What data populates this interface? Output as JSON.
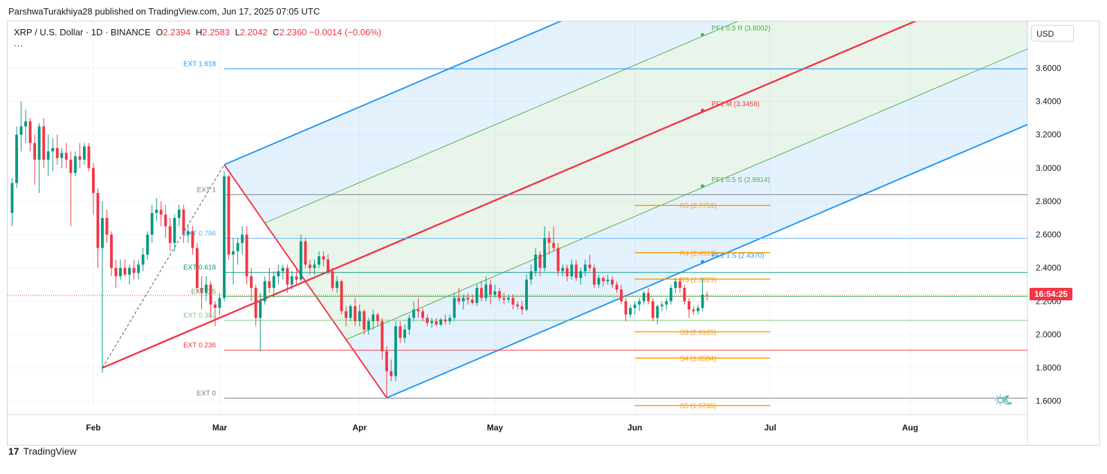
{
  "header": {
    "publisher_line": "ParshwaTurakhiya28 published on TradingView.com, Jun 17, 2025 07:05 UTC"
  },
  "legend": {
    "symbol": "XRP / U.S. Dollar · 1D · BINANCE",
    "open_label": "O",
    "open": "2.2394",
    "high_label": "H",
    "high": "2.2583",
    "low_label": "L",
    "low": "2.2042",
    "close_label": "C",
    "close": "2.2360",
    "change": "−0.0014 (−0.06%)",
    "more": "..."
  },
  "currency_button": "USD",
  "countdown": "16:54:25",
  "footer": {
    "brand_mark": "17",
    "brand": "TradingView"
  },
  "colors": {
    "up": "#089981",
    "down": "#f23645",
    "pitch_blue": "#2196f3",
    "median_red": "#f23645",
    "pivot_orange": "#ff9800",
    "green": "#4caf50"
  },
  "icons": {
    "replay": "sun-moon-icon"
  },
  "chart_data": {
    "type": "candlestick",
    "title": "",
    "y_axis": {
      "ticks": [
        1.6,
        1.8,
        2.0,
        2.2,
        2.4,
        2.6,
        2.8,
        3.0,
        3.2,
        3.4,
        3.6
      ],
      "tick_labels": [
        "1.6000",
        "1.8000",
        "2.0000",
        "2.2000",
        "2.4000",
        "2.6000",
        "2.8000",
        "3.0000",
        "3.2000",
        "3.4000",
        "3.6000"
      ],
      "range": [
        1.52,
        3.88
      ]
    },
    "x_axis": {
      "labels": [
        "Feb",
        "Mar",
        "Apr",
        "May",
        "Jun",
        "Jul",
        "Aug"
      ],
      "dates": [
        "2025-02-01",
        "2025-03-01",
        "2025-04-01",
        "2025-05-01",
        "2025-06-01",
        "2025-07-01",
        "2025-08-01"
      ],
      "range": [
        "2025-01-13",
        "2025-08-27"
      ]
    },
    "candles": [
      [
        "2025-01-14",
        2.73,
        2.94,
        2.65,
        2.91
      ],
      [
        "2025-01-15",
        2.91,
        3.25,
        2.88,
        3.2
      ],
      [
        "2025-01-16",
        3.2,
        3.4,
        3.1,
        3.25
      ],
      [
        "2025-01-17",
        3.25,
        3.35,
        3.15,
        3.28
      ],
      [
        "2025-01-18",
        3.28,
        3.3,
        3.1,
        3.15
      ],
      [
        "2025-01-19",
        3.15,
        3.2,
        2.9,
        3.05
      ],
      [
        "2025-01-20",
        3.05,
        3.27,
        2.85,
        3.25
      ],
      [
        "2025-01-21",
        3.25,
        3.3,
        3.0,
        3.05
      ],
      [
        "2025-01-22",
        3.05,
        3.2,
        2.95,
        3.1
      ],
      [
        "2025-01-23",
        3.1,
        3.18,
        2.98,
        3.12
      ],
      [
        "2025-01-24",
        3.12,
        3.2,
        3.02,
        3.06
      ],
      [
        "2025-01-25",
        3.06,
        3.12,
        3.0,
        3.09
      ],
      [
        "2025-01-26",
        3.09,
        3.15,
        3.0,
        3.05
      ],
      [
        "2025-01-27",
        3.05,
        3.1,
        2.65,
        2.97
      ],
      [
        "2025-01-28",
        2.97,
        3.1,
        2.95,
        3.07
      ],
      [
        "2025-01-29",
        3.07,
        3.15,
        3.0,
        3.05
      ],
      [
        "2025-01-30",
        3.05,
        3.15,
        3.02,
        3.13
      ],
      [
        "2025-01-31",
        3.13,
        3.15,
        2.98,
        3.0
      ],
      [
        "2025-02-01",
        3.0,
        3.03,
        2.72,
        2.85
      ],
      [
        "2025-02-02",
        2.85,
        2.88,
        2.4,
        2.52
      ],
      [
        "2025-02-03",
        2.52,
        2.8,
        1.77,
        2.7
      ],
      [
        "2025-02-04",
        2.7,
        2.75,
        2.55,
        2.6
      ],
      [
        "2025-02-05",
        2.6,
        2.62,
        2.35,
        2.4
      ],
      [
        "2025-02-06",
        2.4,
        2.45,
        2.28,
        2.35
      ],
      [
        "2025-02-07",
        2.35,
        2.45,
        2.33,
        2.4
      ],
      [
        "2025-02-08",
        2.4,
        2.45,
        2.35,
        2.36
      ],
      [
        "2025-02-09",
        2.36,
        2.42,
        2.3,
        2.4
      ],
      [
        "2025-02-10",
        2.4,
        2.45,
        2.33,
        2.37
      ],
      [
        "2025-02-11",
        2.37,
        2.45,
        2.33,
        2.42
      ],
      [
        "2025-02-12",
        2.42,
        2.52,
        2.38,
        2.48
      ],
      [
        "2025-02-13",
        2.48,
        2.62,
        2.45,
        2.6
      ],
      [
        "2025-02-14",
        2.6,
        2.78,
        2.55,
        2.73
      ],
      [
        "2025-02-15",
        2.73,
        2.82,
        2.68,
        2.75
      ],
      [
        "2025-02-16",
        2.75,
        2.8,
        2.65,
        2.72
      ],
      [
        "2025-02-17",
        2.72,
        2.78,
        2.58,
        2.65
      ],
      [
        "2025-02-18",
        2.65,
        2.7,
        2.5,
        2.55
      ],
      [
        "2025-02-19",
        2.55,
        2.72,
        2.5,
        2.7
      ],
      [
        "2025-02-20",
        2.7,
        2.78,
        2.65,
        2.75
      ],
      [
        "2025-02-21",
        2.75,
        2.78,
        2.55,
        2.6
      ],
      [
        "2025-02-22",
        2.6,
        2.65,
        2.55,
        2.62
      ],
      [
        "2025-02-23",
        2.62,
        2.65,
        2.48,
        2.52
      ],
      [
        "2025-02-24",
        2.52,
        2.55,
        2.25,
        2.28
      ],
      [
        "2025-02-25",
        2.28,
        2.35,
        2.15,
        2.25
      ],
      [
        "2025-02-26",
        2.25,
        2.35,
        2.2,
        2.3
      ],
      [
        "2025-02-27",
        2.3,
        2.32,
        2.1,
        2.18
      ],
      [
        "2025-02-28",
        2.18,
        2.2,
        2.05,
        2.16
      ],
      [
        "2025-03-01",
        2.16,
        2.25,
        2.12,
        2.22
      ],
      [
        "2025-03-02",
        2.22,
        2.98,
        2.2,
        2.95
      ],
      [
        "2025-03-03",
        2.95,
        2.96,
        2.45,
        2.48
      ],
      [
        "2025-03-04",
        2.48,
        2.58,
        2.3,
        2.5
      ],
      [
        "2025-03-05",
        2.5,
        2.58,
        2.42,
        2.55
      ],
      [
        "2025-03-06",
        2.55,
        2.65,
        2.48,
        2.6
      ],
      [
        "2025-03-07",
        2.6,
        2.65,
        2.3,
        2.35
      ],
      [
        "2025-03-08",
        2.35,
        2.4,
        2.2,
        2.28
      ],
      [
        "2025-03-09",
        2.28,
        2.3,
        2.05,
        2.1
      ],
      [
        "2025-03-10",
        2.1,
        2.25,
        1.9,
        2.2
      ],
      [
        "2025-03-11",
        2.2,
        2.35,
        2.18,
        2.32
      ],
      [
        "2025-03-12",
        2.32,
        2.4,
        2.25,
        2.28
      ],
      [
        "2025-03-13",
        2.28,
        2.38,
        2.22,
        2.35
      ],
      [
        "2025-03-14",
        2.35,
        2.42,
        2.3,
        2.38
      ],
      [
        "2025-03-15",
        2.38,
        2.42,
        2.33,
        2.4
      ],
      [
        "2025-03-16",
        2.4,
        2.42,
        2.25,
        2.3
      ],
      [
        "2025-03-17",
        2.3,
        2.38,
        2.27,
        2.35
      ],
      [
        "2025-03-18",
        2.35,
        2.4,
        2.3,
        2.33
      ],
      [
        "2025-03-19",
        2.33,
        2.6,
        2.32,
        2.56
      ],
      [
        "2025-03-20",
        2.56,
        2.58,
        2.4,
        2.42
      ],
      [
        "2025-03-21",
        2.42,
        2.45,
        2.36,
        2.4
      ],
      [
        "2025-03-22",
        2.4,
        2.45,
        2.36,
        2.42
      ],
      [
        "2025-03-23",
        2.42,
        2.5,
        2.4,
        2.47
      ],
      [
        "2025-03-24",
        2.47,
        2.5,
        2.41,
        2.45
      ],
      [
        "2025-03-25",
        2.45,
        2.48,
        2.36,
        2.38
      ],
      [
        "2025-03-26",
        2.38,
        2.4,
        2.26,
        2.28
      ],
      [
        "2025-03-27",
        2.28,
        2.35,
        2.25,
        2.32
      ],
      [
        "2025-03-28",
        2.32,
        2.33,
        2.12,
        2.14
      ],
      [
        "2025-03-29",
        2.14,
        2.17,
        2.05,
        2.1
      ],
      [
        "2025-03-30",
        2.1,
        2.18,
        2.08,
        2.17
      ],
      [
        "2025-03-31",
        2.17,
        2.22,
        2.05,
        2.08
      ],
      [
        "2025-04-01",
        2.08,
        2.18,
        2.05,
        2.14
      ],
      [
        "2025-04-02",
        2.14,
        2.15,
        2.0,
        2.03
      ],
      [
        "2025-04-03",
        2.03,
        2.1,
        2.0,
        2.08
      ],
      [
        "2025-04-04",
        2.08,
        2.15,
        2.03,
        2.12
      ],
      [
        "2025-04-05",
        2.12,
        2.13,
        2.05,
        2.08
      ],
      [
        "2025-04-06",
        2.08,
        2.1,
        1.85,
        1.9
      ],
      [
        "2025-04-07",
        1.9,
        1.93,
        1.62,
        1.78
      ],
      [
        "2025-04-08",
        1.78,
        1.85,
        1.72,
        1.75
      ],
      [
        "2025-04-09",
        1.75,
        2.08,
        1.72,
        2.05
      ],
      [
        "2025-04-10",
        2.05,
        2.08,
        1.95,
        1.98
      ],
      [
        "2025-04-11",
        1.98,
        2.06,
        1.95,
        2.03
      ],
      [
        "2025-04-12",
        2.03,
        2.12,
        2.0,
        2.1
      ],
      [
        "2025-04-13",
        2.1,
        2.2,
        2.08,
        2.15
      ],
      [
        "2025-04-14",
        2.15,
        2.22,
        2.1,
        2.14
      ],
      [
        "2025-04-15",
        2.14,
        2.16,
        2.08,
        2.1
      ],
      [
        "2025-04-16",
        2.1,
        2.12,
        2.05,
        2.07
      ],
      [
        "2025-04-17",
        2.07,
        2.1,
        2.04,
        2.08
      ],
      [
        "2025-04-18",
        2.08,
        2.1,
        2.05,
        2.06
      ],
      [
        "2025-04-19",
        2.06,
        2.1,
        2.05,
        2.09
      ],
      [
        "2025-04-20",
        2.09,
        2.12,
        2.06,
        2.08
      ],
      [
        "2025-04-21",
        2.08,
        2.12,
        2.06,
        2.1
      ],
      [
        "2025-04-22",
        2.1,
        2.25,
        2.08,
        2.22
      ],
      [
        "2025-04-23",
        2.22,
        2.28,
        2.18,
        2.2
      ],
      [
        "2025-04-24",
        2.2,
        2.24,
        2.15,
        2.22
      ],
      [
        "2025-04-25",
        2.22,
        2.25,
        2.18,
        2.21
      ],
      [
        "2025-04-26",
        2.21,
        2.24,
        2.18,
        2.19
      ],
      [
        "2025-04-27",
        2.19,
        2.3,
        2.17,
        2.28
      ],
      [
        "2025-04-28",
        2.28,
        2.32,
        2.2,
        2.22
      ],
      [
        "2025-04-29",
        2.22,
        2.35,
        2.2,
        2.3
      ],
      [
        "2025-04-30",
        2.3,
        2.33,
        2.18,
        2.24
      ],
      [
        "2025-05-01",
        2.24,
        2.3,
        2.22,
        2.26
      ],
      [
        "2025-05-02",
        2.26,
        2.28,
        2.2,
        2.22
      ],
      [
        "2025-05-03",
        2.22,
        2.25,
        2.18,
        2.21
      ],
      [
        "2025-05-04",
        2.21,
        2.24,
        2.19,
        2.22
      ],
      [
        "2025-05-05",
        2.22,
        2.24,
        2.15,
        2.18
      ],
      [
        "2025-05-06",
        2.18,
        2.2,
        2.15,
        2.17
      ],
      [
        "2025-05-07",
        2.17,
        2.2,
        2.12,
        2.15
      ],
      [
        "2025-05-08",
        2.15,
        2.36,
        2.14,
        2.33
      ],
      [
        "2025-05-09",
        2.33,
        2.42,
        2.3,
        2.38
      ],
      [
        "2025-05-10",
        2.38,
        2.52,
        2.35,
        2.48
      ],
      [
        "2025-05-11",
        2.48,
        2.5,
        2.35,
        2.4
      ],
      [
        "2025-05-12",
        2.4,
        2.65,
        2.38,
        2.58
      ],
      [
        "2025-05-13",
        2.58,
        2.62,
        2.48,
        2.55
      ],
      [
        "2025-05-14",
        2.55,
        2.65,
        2.5,
        2.52
      ],
      [
        "2025-05-15",
        2.52,
        2.55,
        2.35,
        2.38
      ],
      [
        "2025-05-16",
        2.38,
        2.42,
        2.35,
        2.4
      ],
      [
        "2025-05-17",
        2.4,
        2.42,
        2.32,
        2.35
      ],
      [
        "2025-05-18",
        2.35,
        2.45,
        2.33,
        2.42
      ],
      [
        "2025-05-19",
        2.42,
        2.45,
        2.32,
        2.34
      ],
      [
        "2025-05-20",
        2.34,
        2.4,
        2.3,
        2.38
      ],
      [
        "2025-05-21",
        2.38,
        2.45,
        2.35,
        2.42
      ],
      [
        "2025-05-22",
        2.42,
        2.48,
        2.38,
        2.4
      ],
      [
        "2025-05-23",
        2.4,
        2.42,
        2.28,
        2.3
      ],
      [
        "2025-05-24",
        2.3,
        2.36,
        2.28,
        2.34
      ],
      [
        "2025-05-25",
        2.34,
        2.35,
        2.29,
        2.32
      ],
      [
        "2025-05-26",
        2.32,
        2.36,
        2.3,
        2.33
      ],
      [
        "2025-05-27",
        2.33,
        2.35,
        2.28,
        2.3
      ],
      [
        "2025-05-28",
        2.3,
        2.32,
        2.25,
        2.27
      ],
      [
        "2025-05-29",
        2.27,
        2.3,
        2.18,
        2.2
      ],
      [
        "2025-05-30",
        2.2,
        2.22,
        2.08,
        2.12
      ],
      [
        "2025-05-31",
        2.12,
        2.18,
        2.1,
        2.16
      ],
      [
        "2025-06-01",
        2.16,
        2.2,
        2.12,
        2.18
      ],
      [
        "2025-06-02",
        2.18,
        2.22,
        2.14,
        2.2
      ],
      [
        "2025-06-03",
        2.2,
        2.26,
        2.18,
        2.25
      ],
      [
        "2025-06-04",
        2.25,
        2.28,
        2.18,
        2.2
      ],
      [
        "2025-06-05",
        2.2,
        2.22,
        2.08,
        2.1
      ],
      [
        "2025-06-06",
        2.1,
        2.18,
        2.06,
        2.17
      ],
      [
        "2025-06-07",
        2.17,
        2.2,
        2.14,
        2.18
      ],
      [
        "2025-06-08",
        2.18,
        2.22,
        2.15,
        2.2
      ],
      [
        "2025-06-09",
        2.2,
        2.3,
        2.18,
        2.28
      ],
      [
        "2025-06-10",
        2.28,
        2.34,
        2.25,
        2.32
      ],
      [
        "2025-06-11",
        2.32,
        2.34,
        2.25,
        2.28
      ],
      [
        "2025-06-12",
        2.28,
        2.3,
        2.18,
        2.2
      ],
      [
        "2025-06-13",
        2.2,
        2.22,
        2.1,
        2.15
      ],
      [
        "2025-06-14",
        2.15,
        2.17,
        2.12,
        2.14
      ],
      [
        "2025-06-15",
        2.14,
        2.18,
        2.12,
        2.16
      ],
      [
        "2025-06-16",
        2.16,
        2.34,
        2.14,
        2.24
      ],
      [
        "2025-06-17",
        2.2394,
        2.2583,
        2.2042,
        2.236
      ]
    ],
    "fib_extension_levels": [
      {
        "label": "EXT 1.618",
        "value": 3.595,
        "color": "#2196f3"
      },
      {
        "label": "EXT 1",
        "value": 2.84,
        "color": "#787b86"
      },
      {
        "label": "EXT 0.786",
        "value": 2.578,
        "color": "#64b5f6"
      },
      {
        "label": "EXT 0.618",
        "value": 2.373,
        "color": "#089981"
      },
      {
        "label": "EXT 0.5",
        "value": 2.229,
        "color": "#4caf50"
      },
      {
        "label": "EXT 0.382",
        "value": 2.085,
        "color": "#81c784"
      },
      {
        "label": "EXT 0.236",
        "value": 1.906,
        "color": "#f23645"
      },
      {
        "label": "EXT 0",
        "value": 1.618,
        "color": "#787b86"
      }
    ],
    "pivot_levels": [
      {
        "label": "R5 (2.7759)",
        "value": 2.7759
      },
      {
        "label": "R4 (2.4910)",
        "value": 2.491
      },
      {
        "label": "R3 (2.3329)",
        "value": 2.3329
      },
      {
        "label": "S3 (2.0165)",
        "value": 2.0165
      },
      {
        "label": "S4 (1.8584)",
        "value": 1.8584
      },
      {
        "label": "S5 (1.5735)",
        "value": 1.5735
      }
    ],
    "pitchfork_labels": [
      {
        "label": "PF1 0.5 R (3.8002)",
        "value": 3.8002,
        "color": "#4caf50"
      },
      {
        "label": "PF1 M (3.3458)",
        "value": 3.3458,
        "color": "#f23645"
      },
      {
        "label": "PF1 0.5 S (2.8914)",
        "value": 2.8914,
        "color": "#4caf50"
      },
      {
        "label": "PF1 1 S (2.4370)",
        "value": 2.437,
        "color": "#2196f3"
      }
    ],
    "pitchfork_anchors": [
      {
        "date": "2025-02-03",
        "value": 1.8
      },
      {
        "date": "2025-03-02",
        "value": 3.02
      },
      {
        "date": "2025-04-07",
        "value": 1.62
      }
    ],
    "current_price_line": 2.236
  }
}
